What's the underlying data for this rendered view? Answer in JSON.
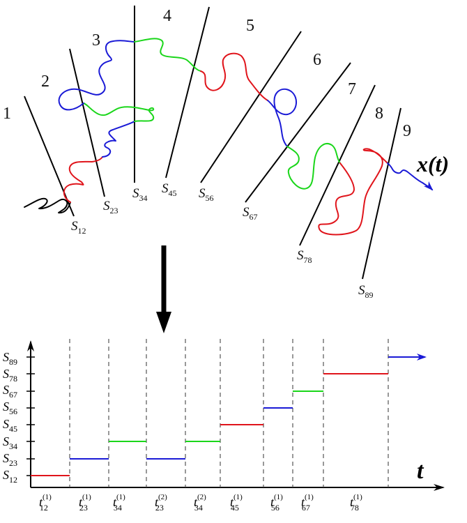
{
  "top_panel": {
    "trajectory_label": "x(t)",
    "region_labels": [
      "1",
      "2",
      "3",
      "4",
      "5",
      "6",
      "7",
      "8",
      "9"
    ],
    "surfaces": [
      {
        "base": "S",
        "sub": "12"
      },
      {
        "base": "S",
        "sub": "23"
      },
      {
        "base": "S",
        "sub": "34"
      },
      {
        "base": "S",
        "sub": "45"
      },
      {
        "base": "S",
        "sub": "56"
      },
      {
        "base": "S",
        "sub": "67"
      },
      {
        "base": "S",
        "sub": "78"
      },
      {
        "base": "S",
        "sub": "89"
      }
    ]
  },
  "bottom_panel": {
    "x_axis_label": "t",
    "y_ticks": [
      {
        "base": "S",
        "sub": "12"
      },
      {
        "base": "S",
        "sub": "23"
      },
      {
        "base": "S",
        "sub": "34"
      },
      {
        "base": "S",
        "sub": "45"
      },
      {
        "base": "S",
        "sub": "56"
      },
      {
        "base": "S",
        "sub": "67"
      },
      {
        "base": "S",
        "sub": "78"
      },
      {
        "base": "S",
        "sub": "89"
      }
    ],
    "time_labels": [
      {
        "base": "t",
        "sub": "12",
        "sup": "(1)"
      },
      {
        "base": "t",
        "sub": "23",
        "sup": "(1)"
      },
      {
        "base": "t",
        "sub": "34",
        "sup": "(1)"
      },
      {
        "base": "t",
        "sub": "23",
        "sup": "(2)"
      },
      {
        "base": "t",
        "sub": "34",
        "sup": "(2)"
      },
      {
        "base": "t",
        "sub": "45",
        "sup": "(1)"
      },
      {
        "base": "t",
        "sub": "56",
        "sup": "(1)"
      },
      {
        "base": "t",
        "sub": "67",
        "sup": "(1)"
      },
      {
        "base": "t",
        "sub": "78",
        "sup": "(1)"
      }
    ],
    "steps": [
      {
        "level": "S12",
        "color": "#e0141b"
      },
      {
        "level": "S23",
        "color": "#1a1ad6"
      },
      {
        "level": "S34",
        "color": "#1ad61a"
      },
      {
        "level": "S23",
        "color": "#1a1ad6"
      },
      {
        "level": "S34",
        "color": "#1ad61a"
      },
      {
        "level": "S45",
        "color": "#e0141b"
      },
      {
        "level": "S56",
        "color": "#1a1ad6"
      },
      {
        "level": "S67",
        "color": "#1ad61a"
      },
      {
        "level": "S78",
        "color": "#e0141b"
      },
      {
        "level": "S89",
        "color": "#1a1ad6"
      }
    ]
  },
  "colors": {
    "red": "#e0141b",
    "blue": "#1a1ad6",
    "green": "#1ad61a",
    "black": "#000000"
  }
}
